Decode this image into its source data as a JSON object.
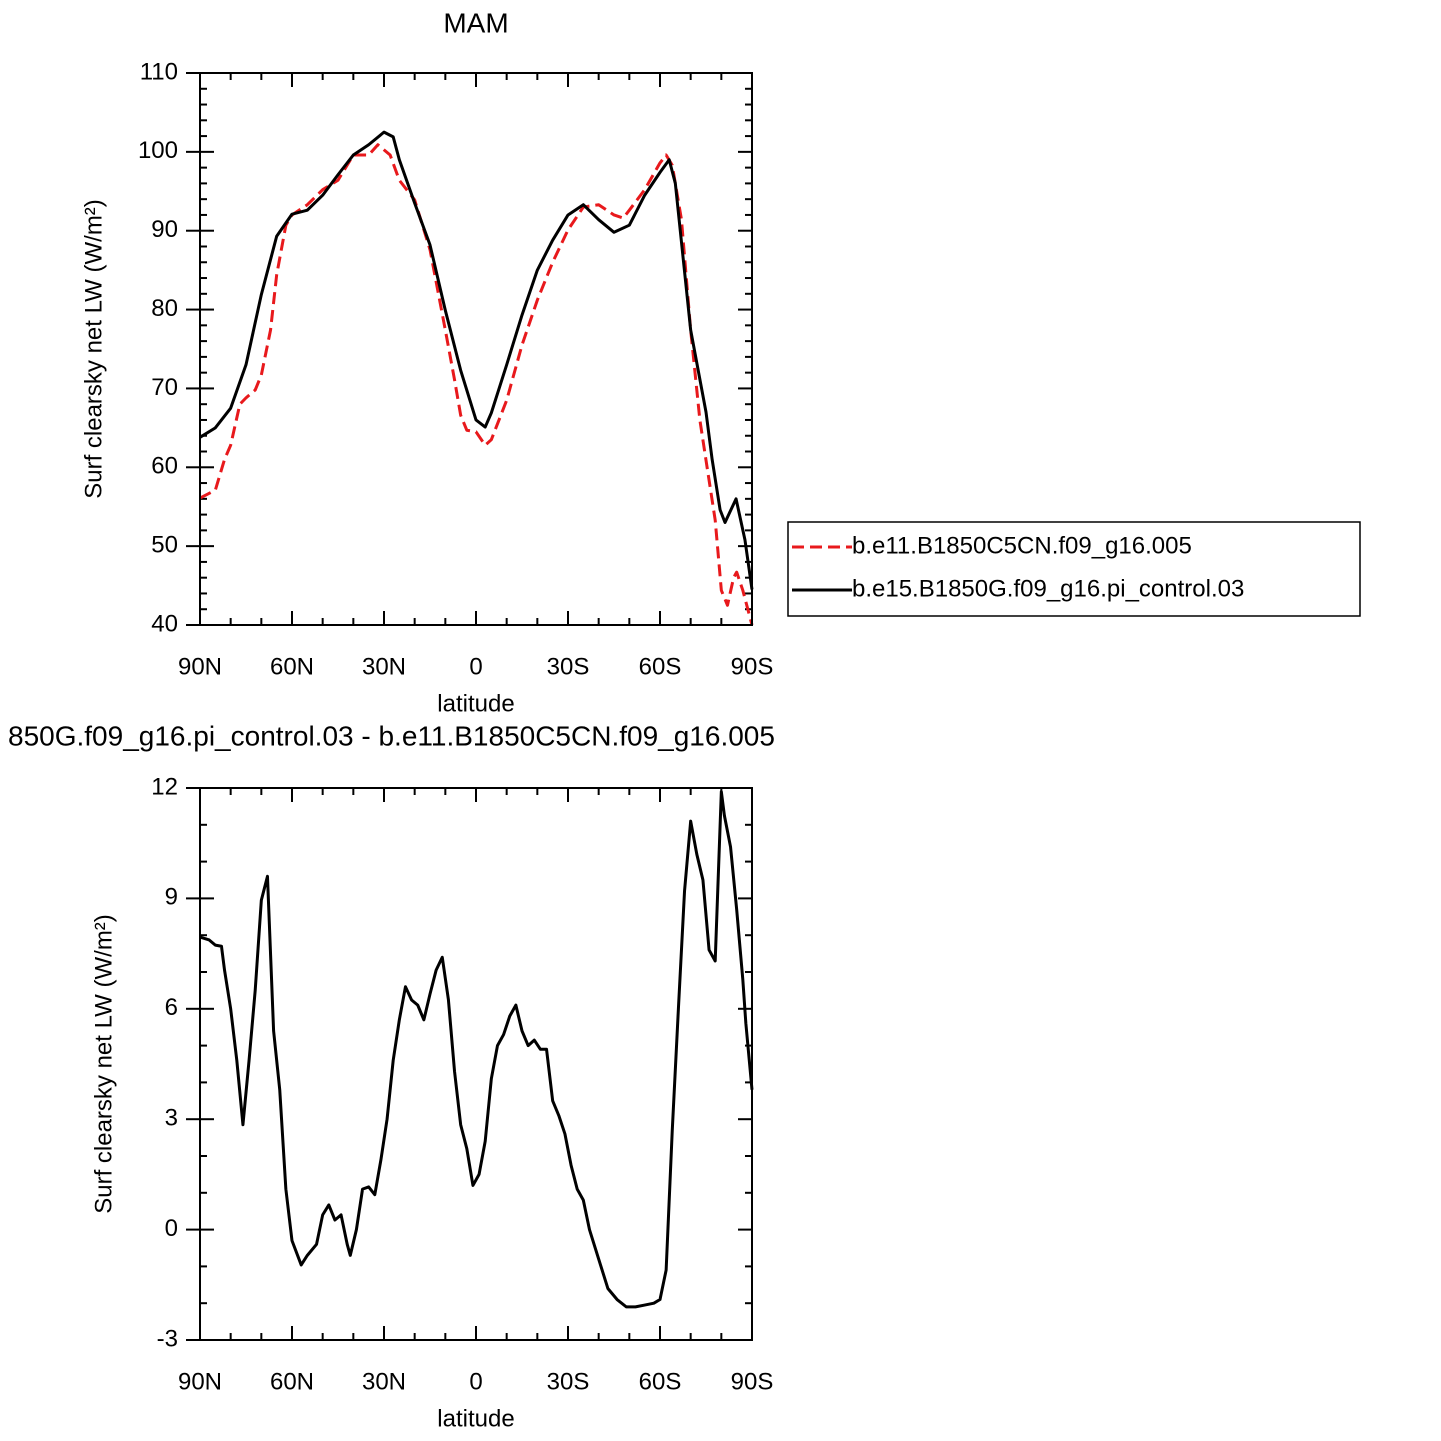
{
  "chart_data": [
    {
      "type": "line",
      "title": "MAM",
      "x_label": "latitude",
      "y_label": "Surf clearsky net LW (W/m²)",
      "xlim": [
        90,
        -90
      ],
      "xticks": [
        {
          "value": 90,
          "label": "90N"
        },
        {
          "value": 60,
          "label": "60N"
        },
        {
          "value": 30,
          "label": "30N"
        },
        0,
        {
          "value": -30,
          "label": "30S"
        },
        {
          "value": -60,
          "label": "60S"
        },
        {
          "value": -90,
          "label": "90S"
        }
      ],
      "ylim": [
        40,
        110
      ],
      "yticks": [
        40,
        50,
        60,
        70,
        80,
        90,
        100,
        110
      ],
      "legend": "outside-right",
      "series": [
        {
          "name": "b.e11.B1850C5CN.f09_g16.005",
          "color": "#e8191c",
          "linestyle": "dashed",
          "x": [
            90,
            85,
            82,
            80,
            77,
            75,
            72,
            70,
            67,
            65,
            62,
            60,
            55,
            50,
            45,
            40,
            37,
            35,
            32,
            28,
            25,
            20,
            15,
            10,
            7,
            5,
            3,
            0,
            -3,
            -5,
            -10,
            -15,
            -20,
            -25,
            -30,
            -35,
            -40,
            -45,
            -48,
            -50,
            -55,
            -60,
            -62,
            -64,
            -67,
            -70,
            -73,
            -75,
            -78,
            -80,
            -82,
            -84,
            -85,
            -87,
            -90
          ],
          "values": [
            56.1,
            57.1,
            61,
            62.8,
            68,
            68.8,
            69.8,
            71.7,
            77.4,
            84.4,
            90.7,
            92,
            93.3,
            95.2,
            96.4,
            99.6,
            99.6,
            99.6,
            100.9,
            99.6,
            96.4,
            93.9,
            87.6,
            77.4,
            71.1,
            66.6,
            64.7,
            64.5,
            62.8,
            63.5,
            68.5,
            75.5,
            81.2,
            86,
            90.1,
            93,
            93.3,
            92,
            91.6,
            92.6,
            95.2,
            98.6,
            99.6,
            98.3,
            91.4,
            77.4,
            66,
            60.9,
            53.3,
            44.4,
            42.5,
            46,
            46.7,
            44.4,
            40
          ]
        },
        {
          "name": "b.e15.B1850G.f09_g16.pi_control.03",
          "color": "#000000",
          "linestyle": "solid",
          "x": [
            90,
            85,
            80,
            75,
            70,
            65,
            60,
            55,
            50,
            45,
            40,
            35,
            30,
            27,
            25,
            20,
            15,
            10,
            5,
            0,
            -3,
            -5,
            -10,
            -15,
            -20,
            -25,
            -30,
            -35,
            -40,
            -45,
            -50,
            -55,
            -60,
            -63,
            -65,
            -70,
            -75,
            -77,
            -79.6,
            -81.2,
            -84.8,
            -87.7,
            -90
          ],
          "values": [
            63.8,
            65,
            67.5,
            73,
            81.9,
            89.3,
            92.1,
            92.6,
            94.5,
            97.1,
            99.6,
            100.9,
            102.5,
            101.9,
            99,
            93.5,
            88.2,
            79.9,
            72.3,
            66,
            65.1,
            66.9,
            73,
            79.3,
            85,
            88.8,
            92,
            93.3,
            91.4,
            89.8,
            90.7,
            94.5,
            97.4,
            99,
            96,
            77.4,
            67,
            61,
            54.6,
            53,
            56,
            50.8,
            44.5
          ]
        }
      ]
    },
    {
      "type": "line",
      "title": "850G.f09_g16.pi_control.03 - b.e11.B1850C5CN.f09_g16.005",
      "x_label": "latitude",
      "y_label": "Surf clearsky net LW (W/m²)",
      "xlim": [
        90,
        -90
      ],
      "xticks": [
        {
          "value": 90,
          "label": "90N"
        },
        {
          "value": 60,
          "label": "60N"
        },
        {
          "value": 30,
          "label": "30N"
        },
        0,
        {
          "value": -30,
          "label": "30S"
        },
        {
          "value": -60,
          "label": "60S"
        },
        {
          "value": -90,
          "label": "90S"
        }
      ],
      "ylim": [
        -3,
        12
      ],
      "yticks": [
        -3,
        0,
        3,
        6,
        9,
        12
      ],
      "series": [
        {
          "color": "#000000",
          "linestyle": "solid",
          "x": [
            90,
            87,
            85,
            83,
            82,
            80,
            78,
            76,
            74,
            72,
            70,
            68,
            66,
            64,
            62,
            60,
            57,
            55,
            52,
            50,
            48,
            46,
            44,
            42,
            41,
            39,
            37,
            35,
            33,
            31,
            29,
            27,
            25,
            23,
            21,
            19,
            17,
            15,
            13,
            11,
            9,
            7,
            5,
            3,
            1,
            -1,
            -3,
            -5,
            -7,
            -9,
            -11,
            -13,
            -15,
            -17,
            -19,
            -21,
            -23,
            -25,
            -27,
            -29,
            -31,
            -33,
            -35,
            -37,
            -40,
            -43,
            -46,
            -49,
            -52,
            -55,
            -58,
            -60,
            -62,
            -64,
            -66,
            -68,
            -70,
            -72,
            -74,
            -76,
            -78,
            -80,
            -81,
            -83,
            -85,
            -87,
            -88,
            -90
          ],
          "values": [
            7.95,
            7.87,
            7.73,
            7.7,
            7.05,
            6,
            4.6,
            2.85,
            4.6,
            6.5,
            8.95,
            9.6,
            5.4,
            3.8,
            1.1,
            -0.3,
            -0.96,
            -0.7,
            -0.4,
            0.4,
            0.67,
            0.26,
            0.4,
            -0.4,
            -0.7,
            0,
            1.1,
            1.16,
            0.95,
            1.9,
            3,
            4.6,
            5.7,
            6.6,
            6.24,
            6.1,
            5.7,
            6.4,
            7.05,
            7.4,
            6.25,
            4.3,
            2.85,
            2.2,
            1.2,
            1.5,
            2.4,
            4.1,
            5,
            5.3,
            5.8,
            6.1,
            5.4,
            5,
            5.15,
            4.9,
            4.9,
            3.5,
            3.1,
            2.6,
            1.75,
            1.1,
            0.8,
            0,
            -0.8,
            -1.6,
            -1.9,
            -2.1,
            -2.1,
            -2.05,
            -2,
            -1.9,
            -1.1,
            2.7,
            6,
            9.2,
            11.1,
            10.2,
            9.5,
            7.6,
            7.3,
            11.9,
            11.25,
            10.4,
            8.7,
            6.8,
            5.6,
            3.8
          ]
        }
      ]
    }
  ]
}
